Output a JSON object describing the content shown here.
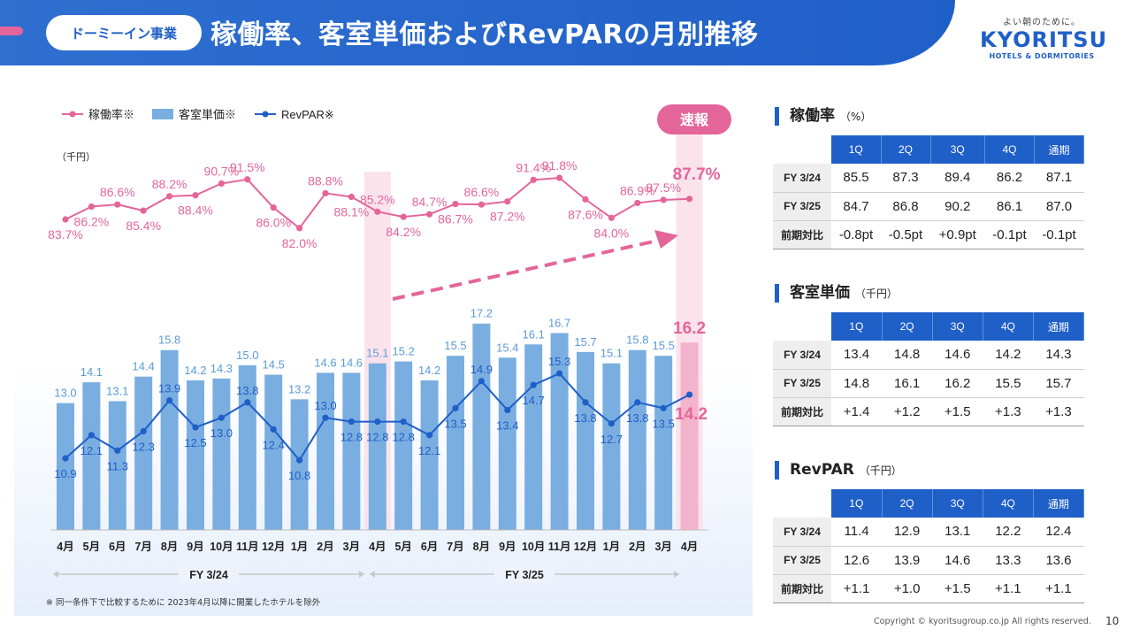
{
  "header": {
    "segment": "ドーミーイン事業",
    "title": "稼働率、客室単価およびRevPARの月別推移",
    "logo_tagline": "よい朝のために。",
    "logo_word": "KYORITSU",
    "logo_sub": "HOTELS & DORMITORIES"
  },
  "colors": {
    "occupancy": "#e4659a",
    "adr_bar": "#7aaee0",
    "revpar": "#1f5fc8",
    "highlight": "#fbe3ec"
  },
  "chart_data": {
    "type": "bar",
    "legend": [
      "稼働率※",
      "客室単価※",
      "RevPAR※"
    ],
    "unit_label": "（千円）",
    "badge": "速報",
    "categories": [
      "4月",
      "5月",
      "6月",
      "7月",
      "8月",
      "9月",
      "10月",
      "11月",
      "12月",
      "1月",
      "2月",
      "3月",
      "4月",
      "5月",
      "6月",
      "7月",
      "8月",
      "9月",
      "10月",
      "11月",
      "12月",
      "1月",
      "2月",
      "3月",
      "4月"
    ],
    "period_labels": [
      "FY 3/24",
      "FY 3/25"
    ],
    "series": [
      {
        "name": "稼働率※",
        "type": "line",
        "unit": "%",
        "values": [
          83.7,
          86.2,
          86.6,
          85.4,
          88.2,
          88.4,
          90.7,
          91.5,
          86.0,
          82.0,
          88.8,
          88.1,
          85.2,
          84.2,
          84.7,
          86.7,
          86.6,
          87.2,
          91.4,
          91.8,
          87.6,
          84.0,
          86.9,
          87.5,
          87.7
        ]
      },
      {
        "name": "客室単価※",
        "type": "bar",
        "values": [
          13.0,
          14.1,
          13.1,
          14.4,
          15.8,
          14.2,
          14.3,
          15.0,
          14.5,
          13.2,
          14.6,
          14.6,
          15.1,
          15.2,
          14.2,
          15.5,
          17.2,
          15.4,
          16.1,
          16.7,
          15.7,
          15.1,
          15.8,
          15.5,
          16.2
        ]
      },
      {
        "name": "RevPAR※",
        "type": "line",
        "values": [
          10.9,
          12.1,
          11.3,
          12.3,
          13.9,
          12.5,
          13.0,
          13.8,
          12.4,
          10.8,
          13.0,
          12.8,
          12.8,
          12.8,
          12.1,
          13.5,
          14.9,
          13.4,
          14.7,
          15.3,
          13.8,
          12.7,
          13.8,
          13.5,
          14.2
        ]
      }
    ]
  },
  "footnote": "※ 同一条件下で比較するために 2023年4月以降に開業したホテルを除外",
  "copyright": "Copyright © kyoritsugroup.co.jp All rights reserved.",
  "page_number": "10",
  "tables": [
    {
      "title": "稼働率",
      "unit": "（%）",
      "columns": [
        "1Q",
        "2Q",
        "3Q",
        "4Q",
        "通期"
      ],
      "rows": [
        {
          "label": "FY 3/24",
          "cells": [
            "85.5",
            "87.3",
            "89.4",
            "86.2",
            "87.1"
          ]
        },
        {
          "label": "FY 3/25",
          "cells": [
            "84.7",
            "86.8",
            "90.2",
            "86.1",
            "87.0"
          ]
        },
        {
          "label": "前期対比",
          "cells": [
            "-0.8pt",
            "-0.5pt",
            "+0.9pt",
            "-0.1pt",
            "-0.1pt"
          ]
        }
      ]
    },
    {
      "title": "客室単価",
      "unit": "（千円）",
      "columns": [
        "1Q",
        "2Q",
        "3Q",
        "4Q",
        "通期"
      ],
      "rows": [
        {
          "label": "FY 3/24",
          "cells": [
            "13.4",
            "14.8",
            "14.6",
            "14.2",
            "14.3"
          ]
        },
        {
          "label": "FY 3/25",
          "cells": [
            "14.8",
            "16.1",
            "16.2",
            "15.5",
            "15.7"
          ]
        },
        {
          "label": "前期対比",
          "cells": [
            "+1.4",
            "+1.2",
            "+1.5",
            "+1.3",
            "+1.3"
          ]
        }
      ]
    },
    {
      "title": "RevPAR",
      "unit": "（千円）",
      "columns": [
        "1Q",
        "2Q",
        "3Q",
        "4Q",
        "通期"
      ],
      "rows": [
        {
          "label": "FY 3/24",
          "cells": [
            "11.4",
            "12.9",
            "13.1",
            "12.2",
            "12.4"
          ]
        },
        {
          "label": "FY 3/25",
          "cells": [
            "12.6",
            "13.9",
            "14.6",
            "13.3",
            "13.6"
          ]
        },
        {
          "label": "前期対比",
          "cells": [
            "+1.1",
            "+1.0",
            "+1.5",
            "+1.1",
            "+1.1"
          ]
        }
      ]
    }
  ]
}
